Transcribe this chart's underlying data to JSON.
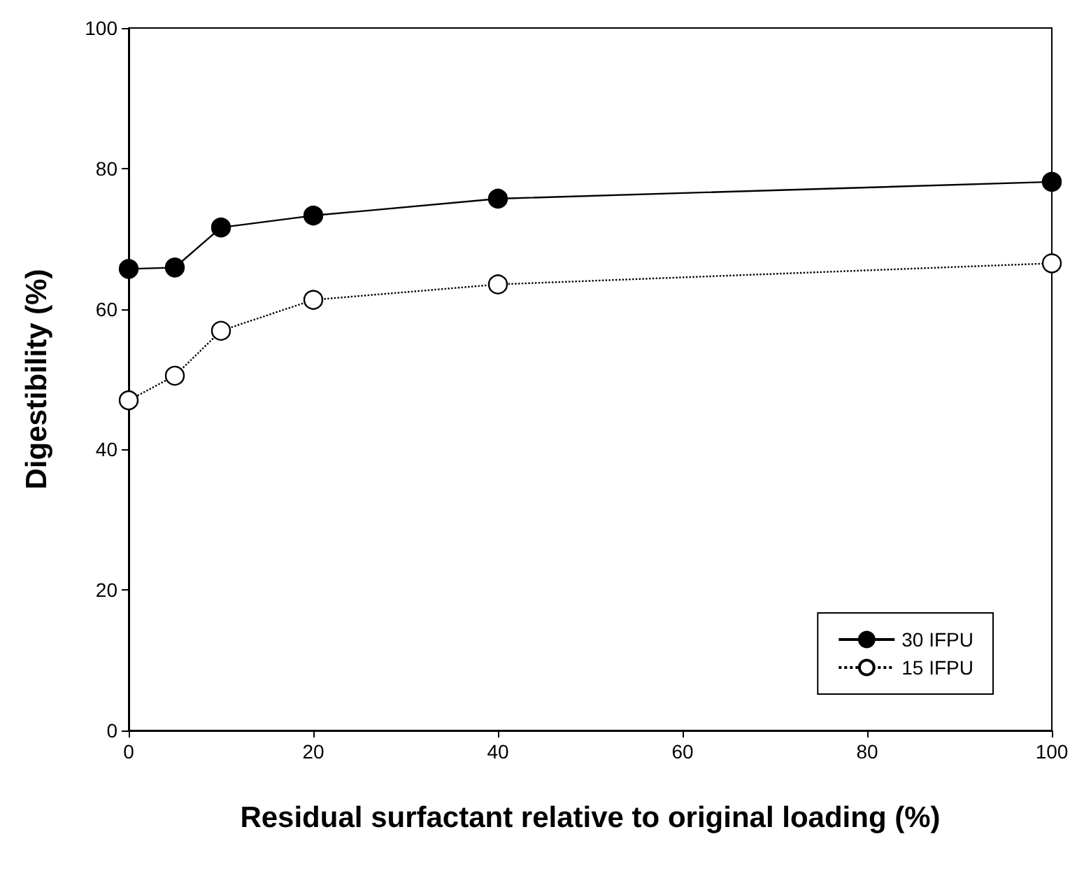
{
  "chart_data": {
    "type": "line",
    "xlabel": "Residual surfactant relative to original loading (%)",
    "ylabel": "Digestibility (%)",
    "x": [
      0,
      5,
      10,
      20,
      40,
      100
    ],
    "series": [
      {
        "name": "30 IFPU",
        "color": "#000000",
        "values": [
          65.7,
          65.9,
          71.6,
          73.3,
          75.7,
          78.1
        ],
        "marker": "circle",
        "line_style": "solid"
      },
      {
        "name": "15 IFPU",
        "color": "#000000",
        "values": [
          47.0,
          50.5,
          56.9,
          61.3,
          63.5,
          66.5
        ],
        "marker": "circle",
        "line_style": "dotted"
      }
    ],
    "xlim": [
      0,
      100
    ],
    "xticks": [
      0,
      20,
      40,
      60,
      80,
      100
    ],
    "ylim": [
      0,
      100
    ],
    "yticks": [
      0,
      20,
      40,
      60,
      80,
      100
    ],
    "grid": false,
    "legend": "bottom right"
  }
}
